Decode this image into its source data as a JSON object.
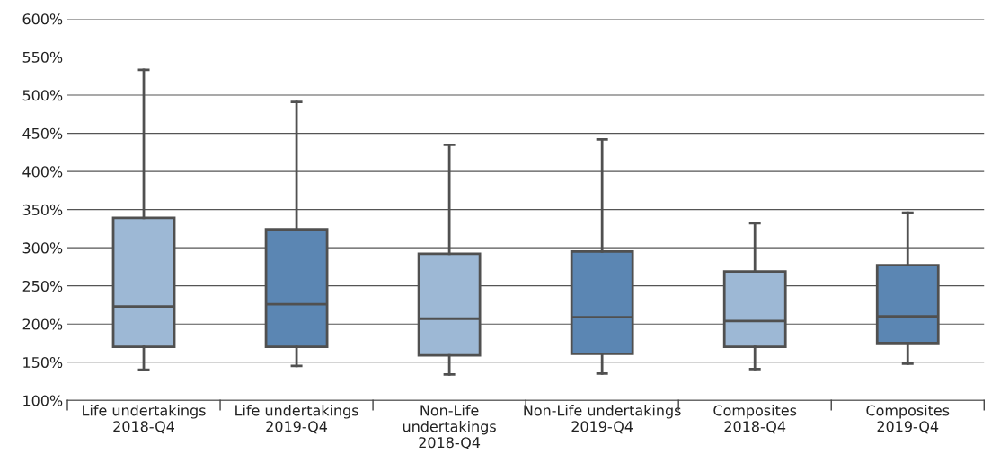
{
  "chart_data": {
    "type": "box",
    "categories": [
      "Life undertakings\n2018-Q4",
      "Life undertakings\n2019-Q4",
      "Non-Life\nundertakings\n2018-Q4",
      "Non-Life undertakings\n2019-Q4",
      "Composites\n2018-Q4",
      "Composites\n2019-Q4"
    ],
    "boxes": [
      {
        "low": 140,
        "q1": 170,
        "median": 223,
        "q3": 339,
        "high": 533
      },
      {
        "low": 145,
        "q1": 170,
        "median": 226,
        "q3": 324,
        "high": 491
      },
      {
        "low": 134,
        "q1": 159,
        "median": 207,
        "q3": 292,
        "high": 435
      },
      {
        "low": 135,
        "q1": 161,
        "median": 209,
        "q3": 295,
        "high": 442
      },
      {
        "low": 141,
        "q1": 170,
        "median": 204,
        "q3": 269,
        "high": 332
      },
      {
        "low": 148,
        "q1": 175,
        "median": 210,
        "q3": 277,
        "high": 346
      }
    ],
    "colors": [
      "#9db8d5",
      "#5b86b3",
      "#9db8d5",
      "#5b86b3",
      "#9db8d5",
      "#5b86b3"
    ],
    "ylim": [
      100,
      600
    ],
    "yticks": [
      {
        "value": 100,
        "label": "100%"
      },
      {
        "value": 150,
        "label": "150%"
      },
      {
        "value": 200,
        "label": "200%"
      },
      {
        "value": 250,
        "label": "250%"
      },
      {
        "value": 300,
        "label": "300%"
      },
      {
        "value": 350,
        "label": "350%"
      },
      {
        "value": 400,
        "label": "400%"
      },
      {
        "value": 450,
        "label": "450%"
      },
      {
        "value": 500,
        "label": "500%"
      },
      {
        "value": 550,
        "label": "550%"
      },
      {
        "value": 600,
        "label": "600%"
      }
    ],
    "grid": "y"
  }
}
